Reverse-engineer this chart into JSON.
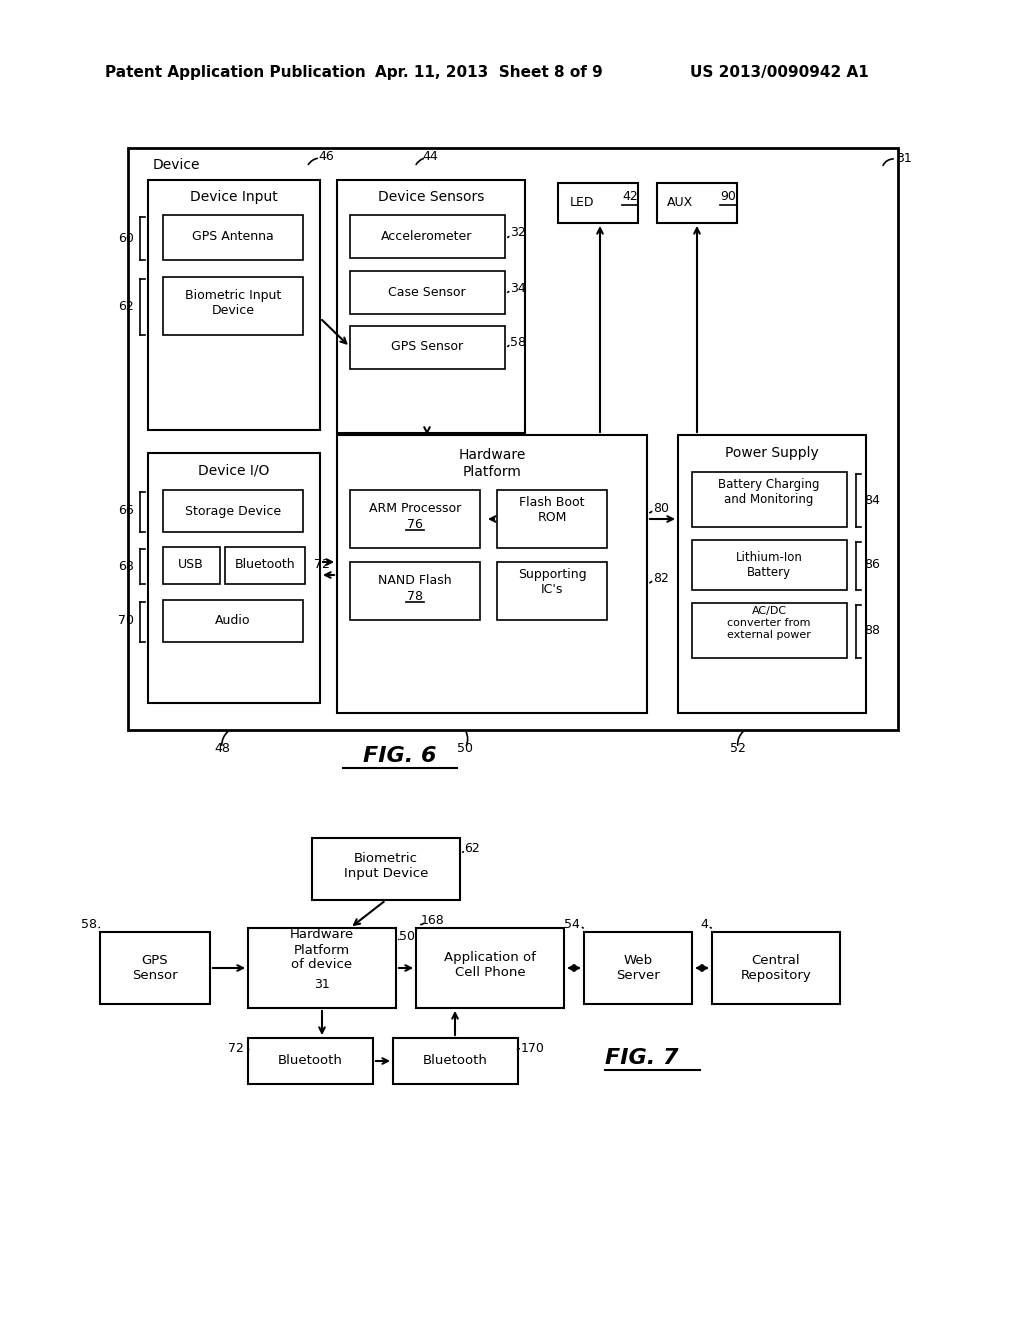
{
  "bg_color": "#ffffff",
  "header_left": "Patent Application Publication",
  "header_mid": "Apr. 11, 2013  Sheet 8 of 9",
  "header_right": "US 2013/0090942 A1"
}
